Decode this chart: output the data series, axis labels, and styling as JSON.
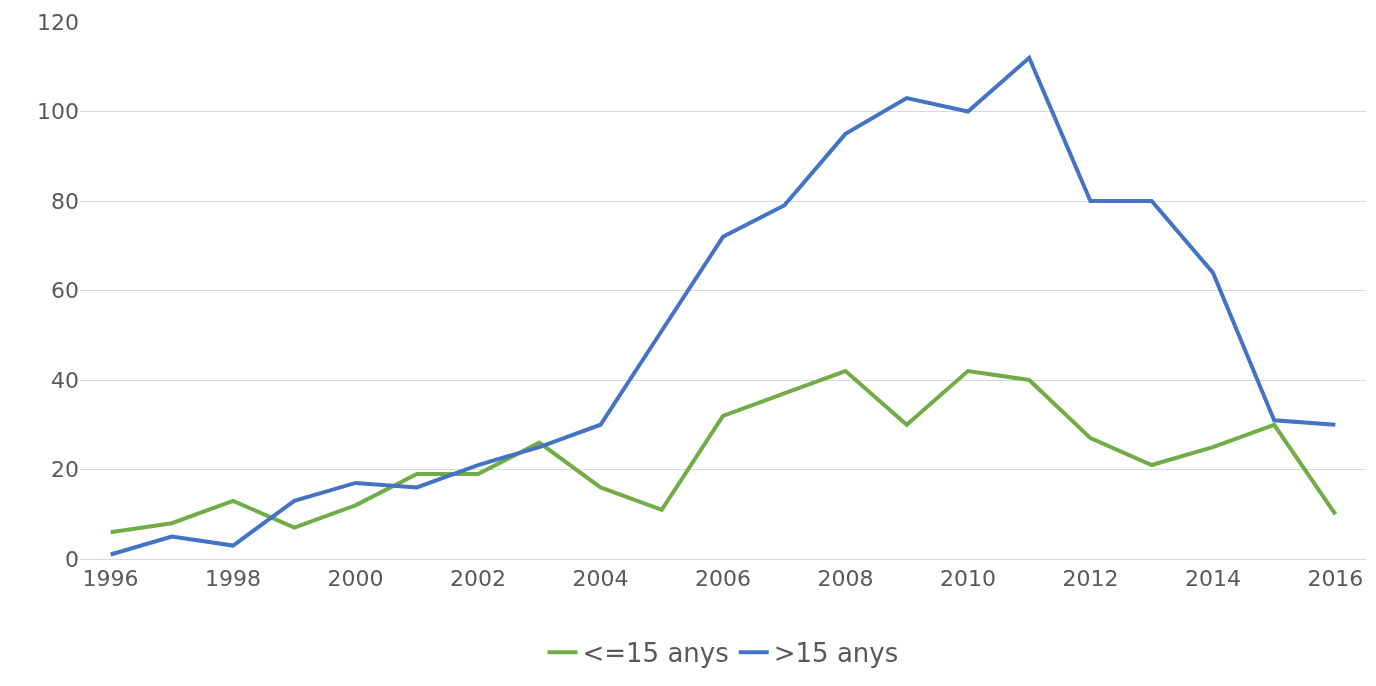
{
  "chart_data": {
    "type": "line",
    "x": [
      1996,
      1997,
      1998,
      1999,
      2000,
      2001,
      2002,
      2003,
      2004,
      2005,
      2006,
      2007,
      2008,
      2009,
      2010,
      2011,
      2012,
      2013,
      2014,
      2015,
      2016
    ],
    "series": [
      {
        "name": "<=15 anys",
        "color": "#70ad47",
        "values": [
          6,
          8,
          13,
          7,
          12,
          19,
          19,
          26,
          16,
          11,
          32,
          37,
          42,
          30,
          42,
          40,
          27,
          21,
          25,
          30,
          10
        ]
      },
      {
        "name": ">15 anys",
        "color": "#4472c4",
        "values": [
          1,
          5,
          3,
          13,
          17,
          16,
          21,
          25,
          30,
          51,
          72,
          79,
          95,
          103,
          100,
          112,
          80,
          80,
          64,
          31,
          30
        ]
      }
    ],
    "xlim": [
      1995.5,
      2016.5
    ],
    "xticks": [
      1996,
      1998,
      2000,
      2002,
      2004,
      2006,
      2008,
      2010,
      2012,
      2014,
      2016
    ],
    "ylim": [
      0,
      120
    ],
    "yticks": [
      0,
      20,
      40,
      60,
      80,
      100,
      120
    ],
    "grid": "y",
    "legend": "bottom",
    "marker": "none",
    "line_style": "solid"
  }
}
